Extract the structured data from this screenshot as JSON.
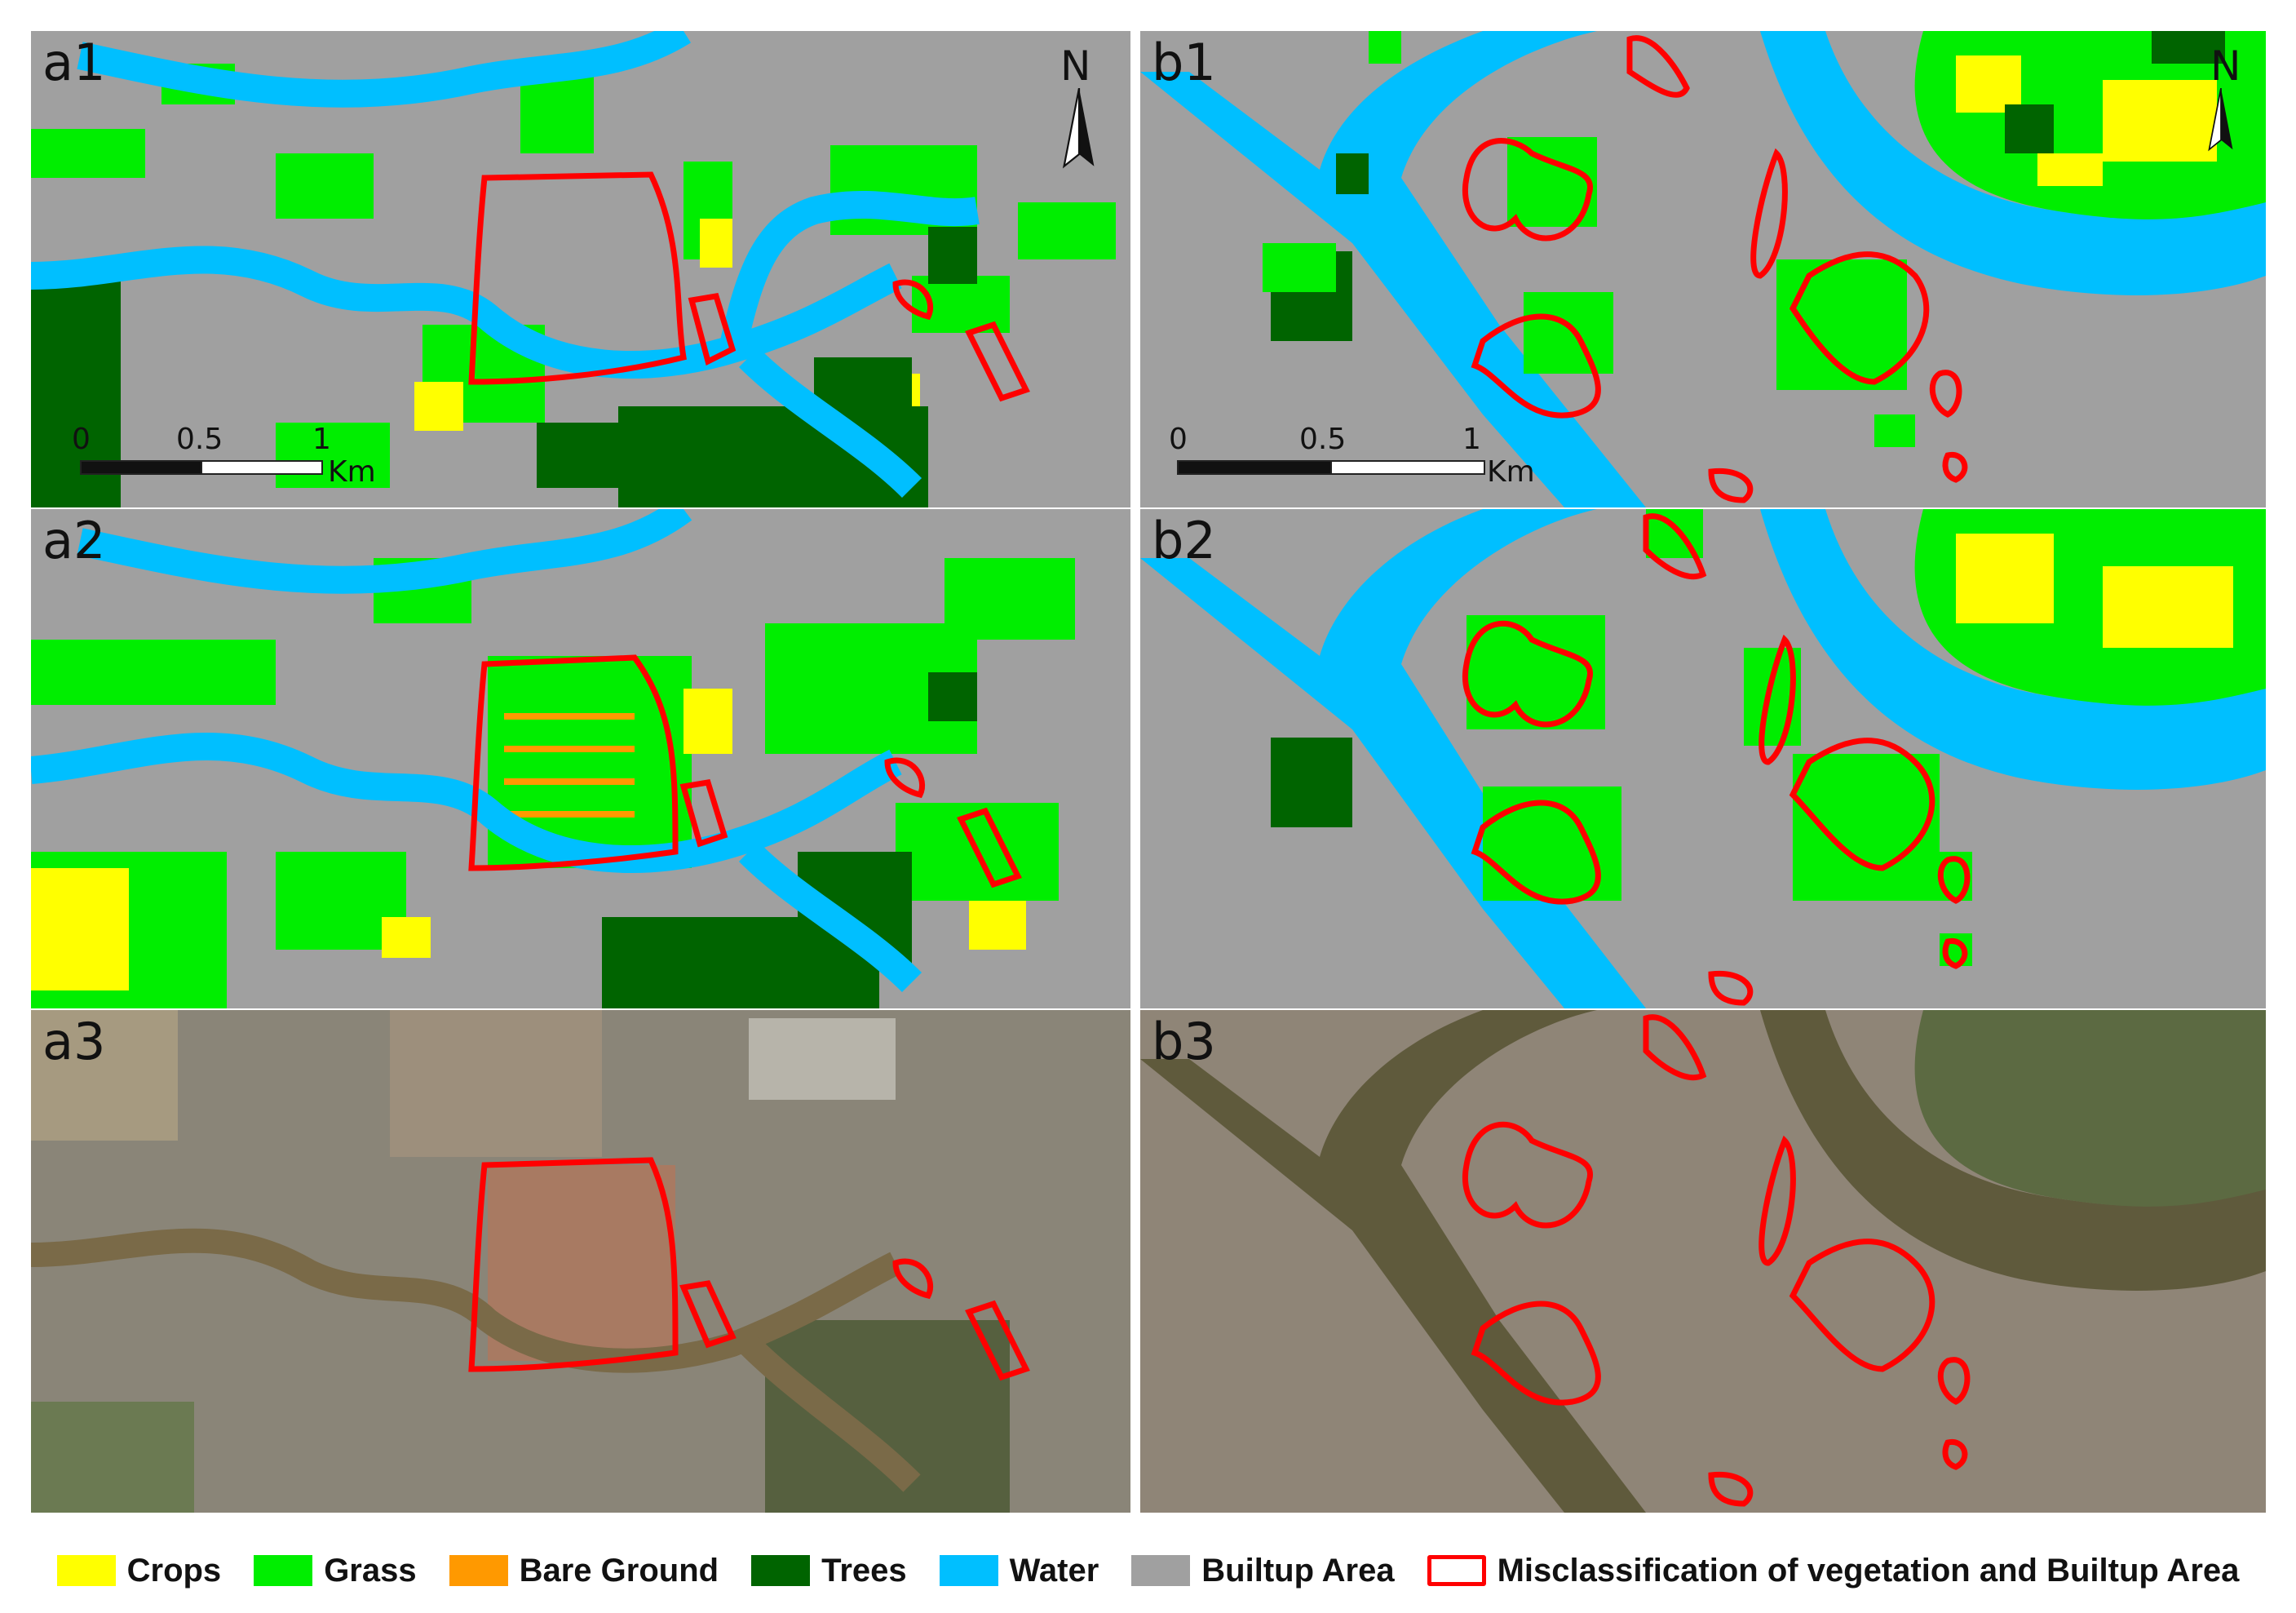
{
  "panels": {
    "a1": {
      "label": "a1"
    },
    "a2": {
      "label": "a2"
    },
    "a3": {
      "label": "a3"
    },
    "b1": {
      "label": "b1"
    },
    "b2": {
      "label": "b2"
    },
    "b3": {
      "label": "b3"
    }
  },
  "north_arrow": {
    "letter": "N"
  },
  "scale_a": {
    "ticks": [
      "0",
      "0.5",
      "1"
    ],
    "unit": "Km"
  },
  "scale_b": {
    "ticks": [
      "0",
      "0.5",
      "1"
    ],
    "unit": "Km"
  },
  "legend": [
    {
      "label": "Crops",
      "color": "#ffff00",
      "type": "fill"
    },
    {
      "label": "Grass",
      "color": "#00ee00",
      "type": "fill"
    },
    {
      "label": "Bare Ground",
      "color": "#ff9900",
      "type": "fill"
    },
    {
      "label": "Trees",
      "color": "#006400",
      "type": "fill"
    },
    {
      "label": "Water",
      "color": "#00bfff",
      "type": "fill"
    },
    {
      "label": "Builtup Area",
      "color": "#a0a0a0",
      "type": "fill"
    },
    {
      "label": "Misclassification of vegetation and Builtup Area",
      "color": "#ff0000",
      "type": "outline"
    }
  ]
}
